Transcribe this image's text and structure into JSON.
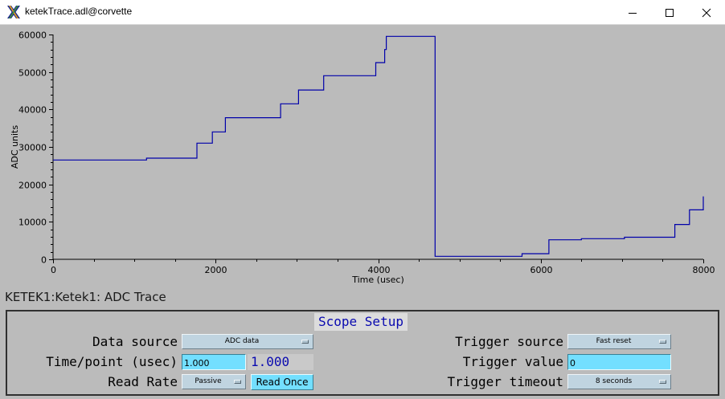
{
  "window": {
    "title": "ketekTrace.adl@corvette",
    "accent": "#0000aa"
  },
  "chart_data": {
    "type": "line",
    "title": "",
    "xlabel": "Time (usec)",
    "ylabel": "ADC units",
    "xlim": [
      0,
      8000
    ],
    "ylim": [
      0,
      60000
    ],
    "x_ticks": [
      0,
      2000,
      4000,
      6000,
      8000
    ],
    "y_ticks": [
      0,
      10000,
      20000,
      30000,
      40000,
      50000,
      60000
    ],
    "grid": false,
    "line_color": "#0000aa",
    "series": [
      {
        "step": true,
        "x": [
          0,
          1150,
          1770,
          1960,
          2120,
          2800,
          3020,
          3330,
          3970,
          4080,
          4100,
          4700,
          5770,
          6100,
          6500,
          7030,
          7650,
          7830,
          8000
        ],
        "y": [
          26500,
          27000,
          31000,
          34000,
          37800,
          41500,
          45200,
          49000,
          52500,
          56000,
          59500,
          800,
          1500,
          5200,
          5500,
          5900,
          9300,
          13200,
          16800
        ]
      }
    ]
  },
  "trace_label": "KETEK1:Ketek1: ADC Trace",
  "scope_setup": {
    "title": "Scope Setup",
    "data_source": {
      "label": "Data source",
      "value": "ADC data"
    },
    "time_per_point": {
      "label": "Time/point (usec)",
      "value": "1.000",
      "readback": "1.000"
    },
    "read_rate": {
      "label": "Read Rate",
      "value": "Passive",
      "button": "Read Once"
    },
    "trigger_source": {
      "label": "Trigger source",
      "value": "Fast reset"
    },
    "trigger_value": {
      "label": "Trigger value",
      "value": "0"
    },
    "trigger_timeout": {
      "label": "Trigger timeout",
      "value": "8 seconds"
    }
  }
}
